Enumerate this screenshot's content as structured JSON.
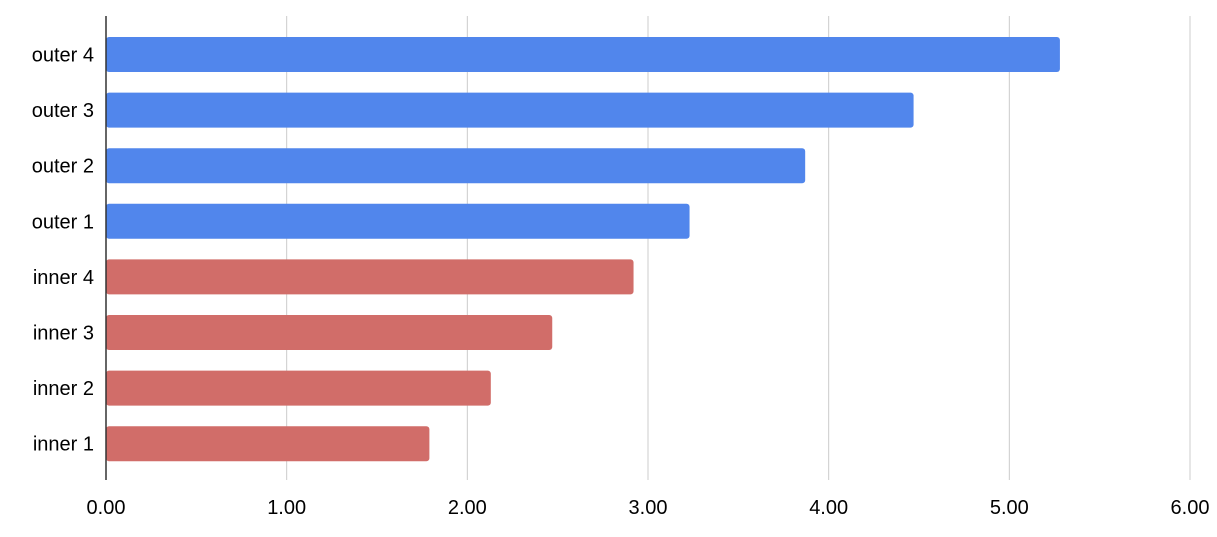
{
  "chart_data": {
    "type": "bar",
    "orientation": "horizontal",
    "categories": [
      "outer 4",
      "outer 3",
      "outer 2",
      "outer 1",
      "inner 4",
      "inner 3",
      "inner 2",
      "inner 1"
    ],
    "values": [
      5.28,
      4.47,
      3.87,
      3.23,
      2.92,
      2.47,
      2.13,
      1.79
    ],
    "bar_colors": [
      "#5186EC",
      "#5186EC",
      "#5186EC",
      "#5186EC",
      "#D16D69",
      "#D16D69",
      "#D16D69",
      "#D16D69"
    ],
    "xlim": [
      0,
      6
    ],
    "x_ticks": [
      "0.00",
      "1.00",
      "2.00",
      "3.00",
      "4.00",
      "5.00",
      "6.00"
    ],
    "grid": true,
    "title": "",
    "xlabel": "",
    "ylabel": ""
  },
  "colors": {
    "grid": "#CCCCCC",
    "axis": "#333333"
  }
}
